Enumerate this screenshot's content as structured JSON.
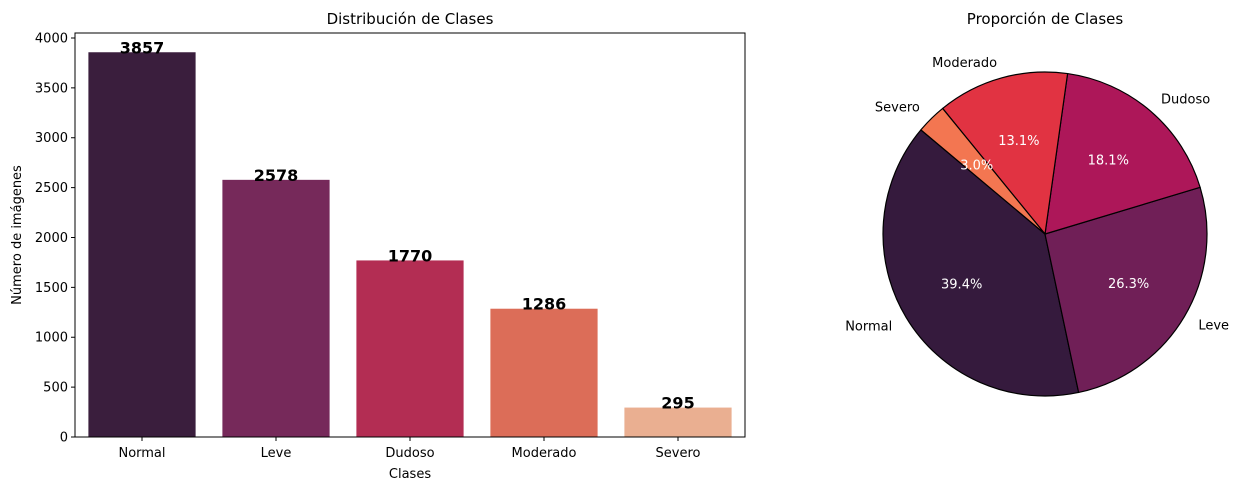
{
  "chart_data": [
    {
      "type": "bar",
      "title": "Distribución de Clases",
      "xlabel": "Clases",
      "ylabel": "Número de imágenes",
      "categories": [
        "Normal",
        "Leve",
        "Dudoso",
        "Moderado",
        "Severo"
      ],
      "values": [
        3857,
        2578,
        1770,
        1286,
        295
      ],
      "value_labels": [
        "3857",
        "2578",
        "1770",
        "1286",
        "295"
      ],
      "ylim": [
        0,
        4050
      ],
      "yticks": [
        0,
        500,
        1000,
        1500,
        2000,
        2500,
        3000,
        3500,
        4000
      ],
      "ytick_labels": [
        "0",
        "500",
        "1000",
        "1500",
        "2000",
        "2500",
        "3000",
        "3500",
        "4000"
      ],
      "colors": [
        "#3a1e3d",
        "#76295a",
        "#b32d53",
        "#dc6d58",
        "#eaaf91"
      ],
      "grid": false
    },
    {
      "type": "pie",
      "title": "Proporción de Clases",
      "labels": [
        "Normal",
        "Leve",
        "Dudoso",
        "Moderado",
        "Severo"
      ],
      "values": [
        39.4,
        26.3,
        18.1,
        13.1,
        3.0
      ],
      "pct_labels": [
        "39.4%",
        "26.3%",
        "18.1%",
        "13.1%",
        "3.0%"
      ],
      "start_angle_deg": 140,
      "direction": "counterclockwise",
      "colors": [
        "#351a3d",
        "#701f57",
        "#ad1759",
        "#e13342",
        "#f37651"
      ],
      "edge_color": "#000000"
    }
  ]
}
